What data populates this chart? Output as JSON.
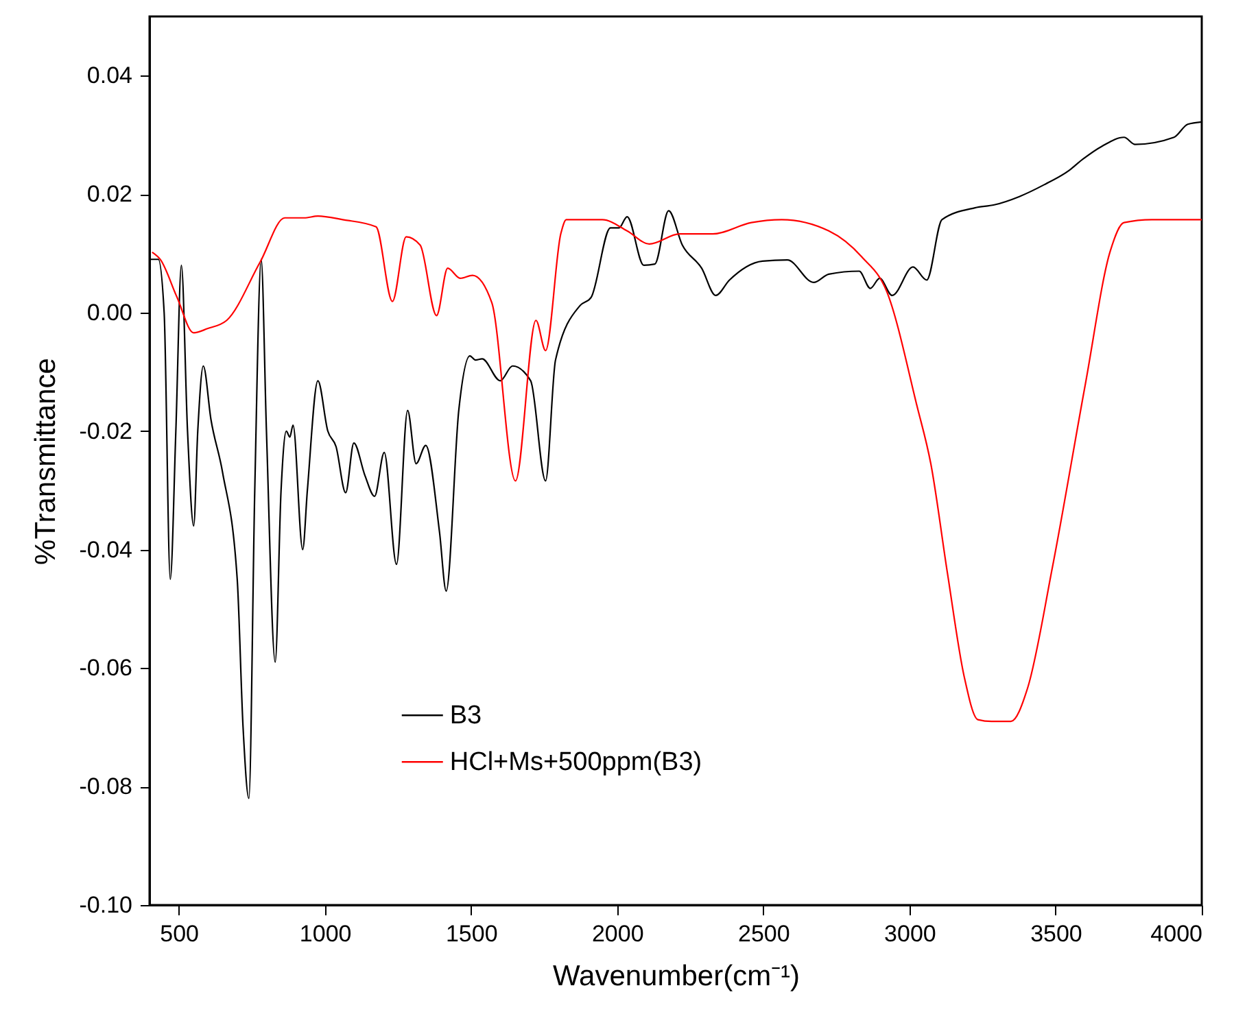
{
  "chart_data": {
    "type": "line",
    "xlabel": "Wavenumber(cm⁻¹)",
    "ylabel": "%Transmittance",
    "xlim": [
      400,
      4000
    ],
    "ylim": [
      -0.1,
      0.05
    ],
    "xticks": [
      500,
      1000,
      1500,
      2000,
      2500,
      3000,
      3500,
      4000
    ],
    "yticks": [
      {
        "value": -0.1,
        "label": "-0.10"
      },
      {
        "value": -0.08,
        "label": "-0.08"
      },
      {
        "value": -0.06,
        "label": "-0.06"
      },
      {
        "value": -0.04,
        "label": "-0.04"
      },
      {
        "value": -0.02,
        "label": "-0.02"
      },
      {
        "value": 0,
        "label": "0.00"
      },
      {
        "value": 0.02,
        "label": "0.02"
      },
      {
        "value": 0.04,
        "label": "0.04"
      }
    ],
    "grid": false,
    "legend": "bottom left",
    "marker": "none",
    "line_style": "solid",
    "series": [
      {
        "name": "B3",
        "color": "#000000",
        "x": [
          400,
          430,
          450,
          471,
          490,
          509,
          530,
          551,
          565,
          584,
          610,
          650,
          700,
          720,
          740,
          760,
          782,
          800,
          830,
          850,
          868,
          880,
          891,
          924,
          940,
          976,
          1010,
          1038,
          1071,
          1099,
          1137,
          1170,
          1203,
          1245,
          1283,
          1312,
          1345,
          1392,
          1415,
          1458,
          1496,
          1515,
          1538,
          1600,
          1642,
          1704,
          1755,
          1789,
          1873,
          1911,
          1977,
          2006,
          2034,
          2091,
          2129,
          2176,
          2223,
          2289,
          2337,
          2384,
          2497,
          2582,
          2672,
          2724,
          2828,
          2866,
          2898,
          2941,
          3012,
          3059,
          3111,
          3224,
          3290,
          3376,
          3461,
          3546,
          3593,
          3659,
          3734,
          3772,
          3905,
          3952,
          4000
        ],
        "values": [
          0.009,
          0.009,
          0.0,
          -0.045,
          -0.02,
          0.008,
          -0.02,
          -0.036,
          -0.02,
          -0.009,
          -0.018,
          -0.027,
          -0.045,
          -0.07,
          -0.082,
          -0.03,
          0.009,
          -0.02,
          -0.059,
          -0.03,
          -0.02,
          -0.021,
          -0.019,
          -0.04,
          -0.03,
          -0.0115,
          -0.02,
          -0.0226,
          -0.0304,
          -0.022,
          -0.0275,
          -0.031,
          -0.0236,
          -0.0425,
          -0.0165,
          -0.0255,
          -0.0224,
          -0.037,
          -0.047,
          -0.0165,
          -0.0073,
          -0.008,
          -0.0078,
          -0.0115,
          -0.009,
          -0.0115,
          -0.0284,
          -0.008,
          0.0012,
          0.0026,
          0.0143,
          0.0143,
          0.0162,
          0.008,
          0.0082,
          0.0172,
          0.0114,
          0.0075,
          0.0029,
          0.0055,
          0.0087,
          0.0089,
          0.0051,
          0.0065,
          0.007,
          0.0041,
          0.0058,
          0.0029,
          0.0077,
          0.0055,
          0.0157,
          0.0177,
          0.0182,
          0.0196,
          0.0216,
          0.024,
          0.0259,
          0.0281,
          0.0296,
          0.0284,
          0.0296,
          0.0318,
          0.0322
        ]
      },
      {
        "name": "HCl+Ms+500ppm(B3)",
        "color": "#ff0000",
        "x": [
          409,
          438,
          494,
          551,
          598,
          664,
          778,
          863,
          929,
          976,
          1061,
          1175,
          1231,
          1278,
          1326,
          1382,
          1420,
          1463,
          1505,
          1571,
          1652,
          1722,
          1755,
          1807,
          1826,
          1949,
          2034,
          2110,
          2214,
          2327,
          2459,
          2563,
          2724,
          2837,
          2922,
          3026,
          3073,
          3130,
          3187,
          3234,
          3281,
          3347,
          3404,
          3489,
          3602,
          3687,
          3734,
          3829,
          4000
        ],
        "values": [
          0.0102,
          0.0089,
          0.0026,
          -0.0034,
          -0.0027,
          -0.0013,
          0.0085,
          0.016,
          0.016,
          0.0163,
          0.0157,
          0.0145,
          0.0019,
          0.0128,
          0.0114,
          -0.0005,
          0.0075,
          0.0058,
          0.0063,
          0.0017,
          -0.0284,
          -0.0013,
          -0.0064,
          0.0133,
          0.0157,
          0.0157,
          0.0138,
          0.0116,
          0.0133,
          0.0133,
          0.0152,
          0.0157,
          0.0138,
          0.0094,
          0.0036,
          -0.0158,
          -0.0255,
          -0.044,
          -0.0614,
          -0.0687,
          -0.069,
          -0.069,
          -0.0634,
          -0.043,
          -0.012,
          0.0104,
          0.0152,
          0.0157,
          0.0157
        ]
      }
    ]
  }
}
